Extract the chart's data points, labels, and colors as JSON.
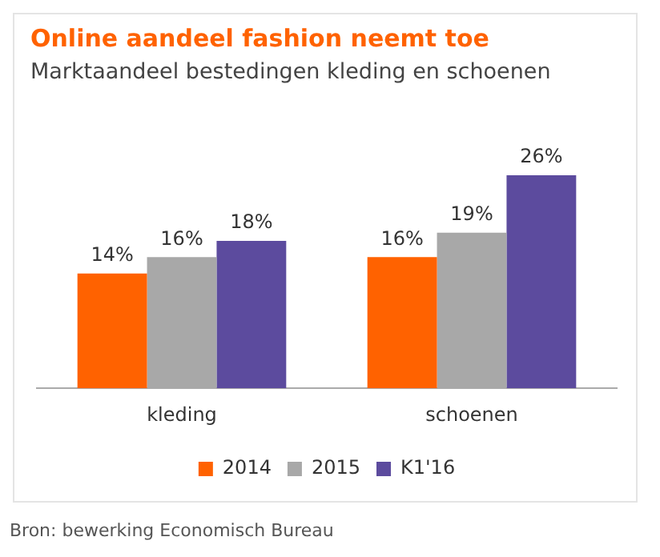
{
  "chart_data": {
    "type": "bar",
    "title": "Online aandeel fashion neemt toe",
    "subtitle": "Marktaandeel bestedingen kleding en schoenen",
    "categories": [
      "kleding",
      "schoenen"
    ],
    "series": [
      {
        "name": "2014",
        "color": "#ff6200",
        "values": [
          14,
          16
        ],
        "value_labels": [
          "14%",
          "16%"
        ]
      },
      {
        "name": "2015",
        "color": "#a8a8a8",
        "values": [
          16,
          19
        ],
        "value_labels": [
          "16%",
          "19%"
        ]
      },
      {
        "name": "K1'16",
        "color": "#5c4b9e",
        "values": [
          18,
          26
        ],
        "value_labels": [
          "18%",
          "26%"
        ]
      }
    ],
    "legend": "bottom",
    "annotations": [
      "Bron: bewerking Economisch Bureau"
    ]
  }
}
